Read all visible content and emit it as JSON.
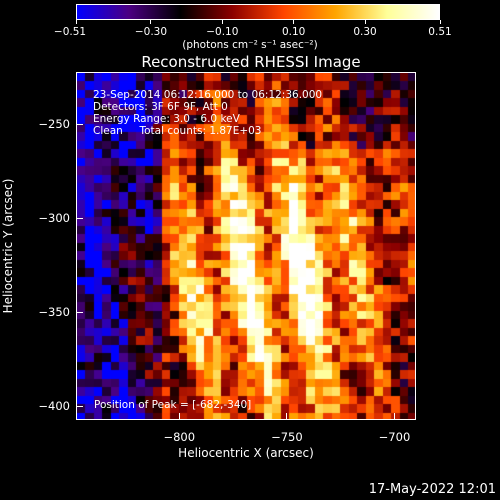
{
  "colorbar": {
    "ticks": [
      "−0.51",
      "−0.30",
      "−0.10",
      "0.10",
      "0.30",
      "0.51"
    ],
    "tick_values": [
      -0.51,
      -0.3,
      -0.1,
      0.1,
      0.3,
      0.51
    ],
    "range": [
      -0.51,
      0.51
    ],
    "unit_label": "(photons cm⁻² s⁻¹ asec⁻²)",
    "colors": [
      "#0000ff",
      "#4b0082",
      "#000000",
      "#8b0000",
      "#ff4500",
      "#ffa500",
      "#ffff99",
      "#ffffff"
    ]
  },
  "chart_data": {
    "type": "heatmap",
    "title": "Reconstructed RHESSI Image",
    "xlabel": "Heliocentric X (arcsec)",
    "ylabel": "Heliocentric Y (arcsec)",
    "xlim": [
      -848,
      -690
    ],
    "ylim": [
      -407,
      -222
    ],
    "x_ticks": [
      "−800",
      "−750",
      "−700"
    ],
    "x_tick_values": [
      -800,
      -750,
      -700
    ],
    "y_ticks": [
      "−250",
      "−300",
      "−350",
      "−400"
    ],
    "y_tick_values": [
      -250,
      -300,
      -350,
      -400
    ],
    "grid": false,
    "colormap_range": [
      -0.51,
      0.51
    ],
    "peak": [
      -682,
      -340
    ],
    "annotations": [
      "23-Sep-2014 06:12:16.000 to 06:12:36.000",
      "Detectors: 3F 6F 9F, Att 0",
      "Energy Range: 3.0 - 6.0 keV",
      "Clean     Total counts: 1.87E+03"
    ],
    "peak_annotation": "Position of Peak = [-682,-340]"
  },
  "footer": {
    "timestamp": "17-May-2022 12:01"
  }
}
